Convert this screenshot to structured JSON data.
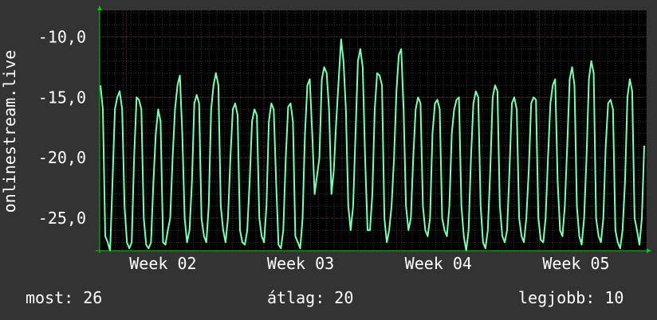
{
  "chart_data": {
    "type": "line",
    "ylabel": "onlinestream.live",
    "ylim": [
      -27.7,
      -7.8
    ],
    "y_ticks": [
      -10,
      -15,
      -20,
      -25
    ],
    "y_tick_labels": [
      "-10,0",
      "-15,0",
      "-20,0",
      "-25,0"
    ],
    "x_tick_labels": [
      "Week 02",
      "Week 03",
      "Week 04",
      "Week 05"
    ],
    "x_tick_positions": [
      0.0487,
      0.3004,
      0.5522,
      0.8039
    ],
    "grid": true,
    "colors": {
      "background": "#333333",
      "plot": "#000000",
      "line": "#7dffb4",
      "grid_minor": "#3a3a3a",
      "grid_major": "#5a2a2a",
      "axis": "#00cc00"
    },
    "series": [
      {
        "values": [
          -14,
          -16,
          -26.5,
          -27,
          -27.7,
          -22,
          -16,
          -15,
          -14.5,
          -16,
          -24,
          -27,
          -27.5,
          -27,
          -20,
          -15,
          -15.2,
          -16,
          -25,
          -27.2,
          -27.5,
          -27,
          -22,
          -18,
          -16,
          -17,
          -27,
          -27.2,
          -26,
          -25,
          -20,
          -16,
          -14,
          -13.2,
          -18,
          -25,
          -27,
          -26,
          -22,
          -15.5,
          -14.8,
          -15.5,
          -25,
          -26.5,
          -27,
          -24,
          -16,
          -14,
          -13,
          -14,
          -24,
          -26,
          -27,
          -25,
          -20,
          -16,
          -15.5,
          -16.5,
          -26,
          -27,
          -27.2,
          -26,
          -22,
          -17,
          -16,
          -16.5,
          -25,
          -26.5,
          -27,
          -24,
          -17,
          -15.5,
          -16,
          -22,
          -27.2,
          -27.5,
          -26,
          -20,
          -15.8,
          -15.5,
          -17,
          -26.5,
          -27,
          -27.5,
          -25,
          -18,
          -14,
          -13.5,
          -18,
          -23,
          -21.5,
          -20,
          -13.5,
          -12.5,
          -13,
          -16,
          -23,
          -21,
          -17,
          -13.5,
          -10.2,
          -12,
          -16,
          -24,
          -26,
          -24,
          -18,
          -12,
          -11,
          -12.5,
          -20,
          -26,
          -26,
          -23,
          -16,
          -13,
          -13.2,
          -14,
          -25,
          -27,
          -26,
          -24,
          -20,
          -14.5,
          -11.5,
          -11,
          -16,
          -24,
          -26,
          -25,
          -20,
          -16,
          -15,
          -15.5,
          -24,
          -26,
          -26.5,
          -25,
          -18,
          -15.5,
          -15.2,
          -16,
          -25,
          -26,
          -26.5,
          -24,
          -18,
          -16,
          -15.2,
          -15,
          -24,
          -26.5,
          -27.7,
          -26,
          -20,
          -15.5,
          -14.5,
          -15,
          -24,
          -27,
          -27.5,
          -26,
          -21,
          -15,
          -14,
          -14.5,
          -24,
          -26.5,
          -27,
          -26,
          -21,
          -15.5,
          -15,
          -16,
          -25,
          -26.5,
          -27,
          -25,
          -21,
          -15.5,
          -15,
          -15.2,
          -25,
          -26.8,
          -27,
          -25,
          -20,
          -15.5,
          -14,
          -13.5,
          -22,
          -26,
          -26.5,
          -24,
          -19,
          -13.5,
          -12.5,
          -14,
          -24,
          -26.5,
          -27.2,
          -25,
          -20,
          -13.5,
          -12,
          -13,
          -25,
          -26.5,
          -27,
          -25,
          -19,
          -15.5,
          -15.2,
          -16,
          -26,
          -27,
          -27.5,
          -26,
          -22,
          -15,
          -13.5,
          -14.5,
          -25,
          -26,
          -27.2,
          -25,
          -19
        ]
      }
    ]
  },
  "stats": {
    "now": "most: 26",
    "avg": "átlag: 20",
    "best": "legjobb: 10"
  }
}
